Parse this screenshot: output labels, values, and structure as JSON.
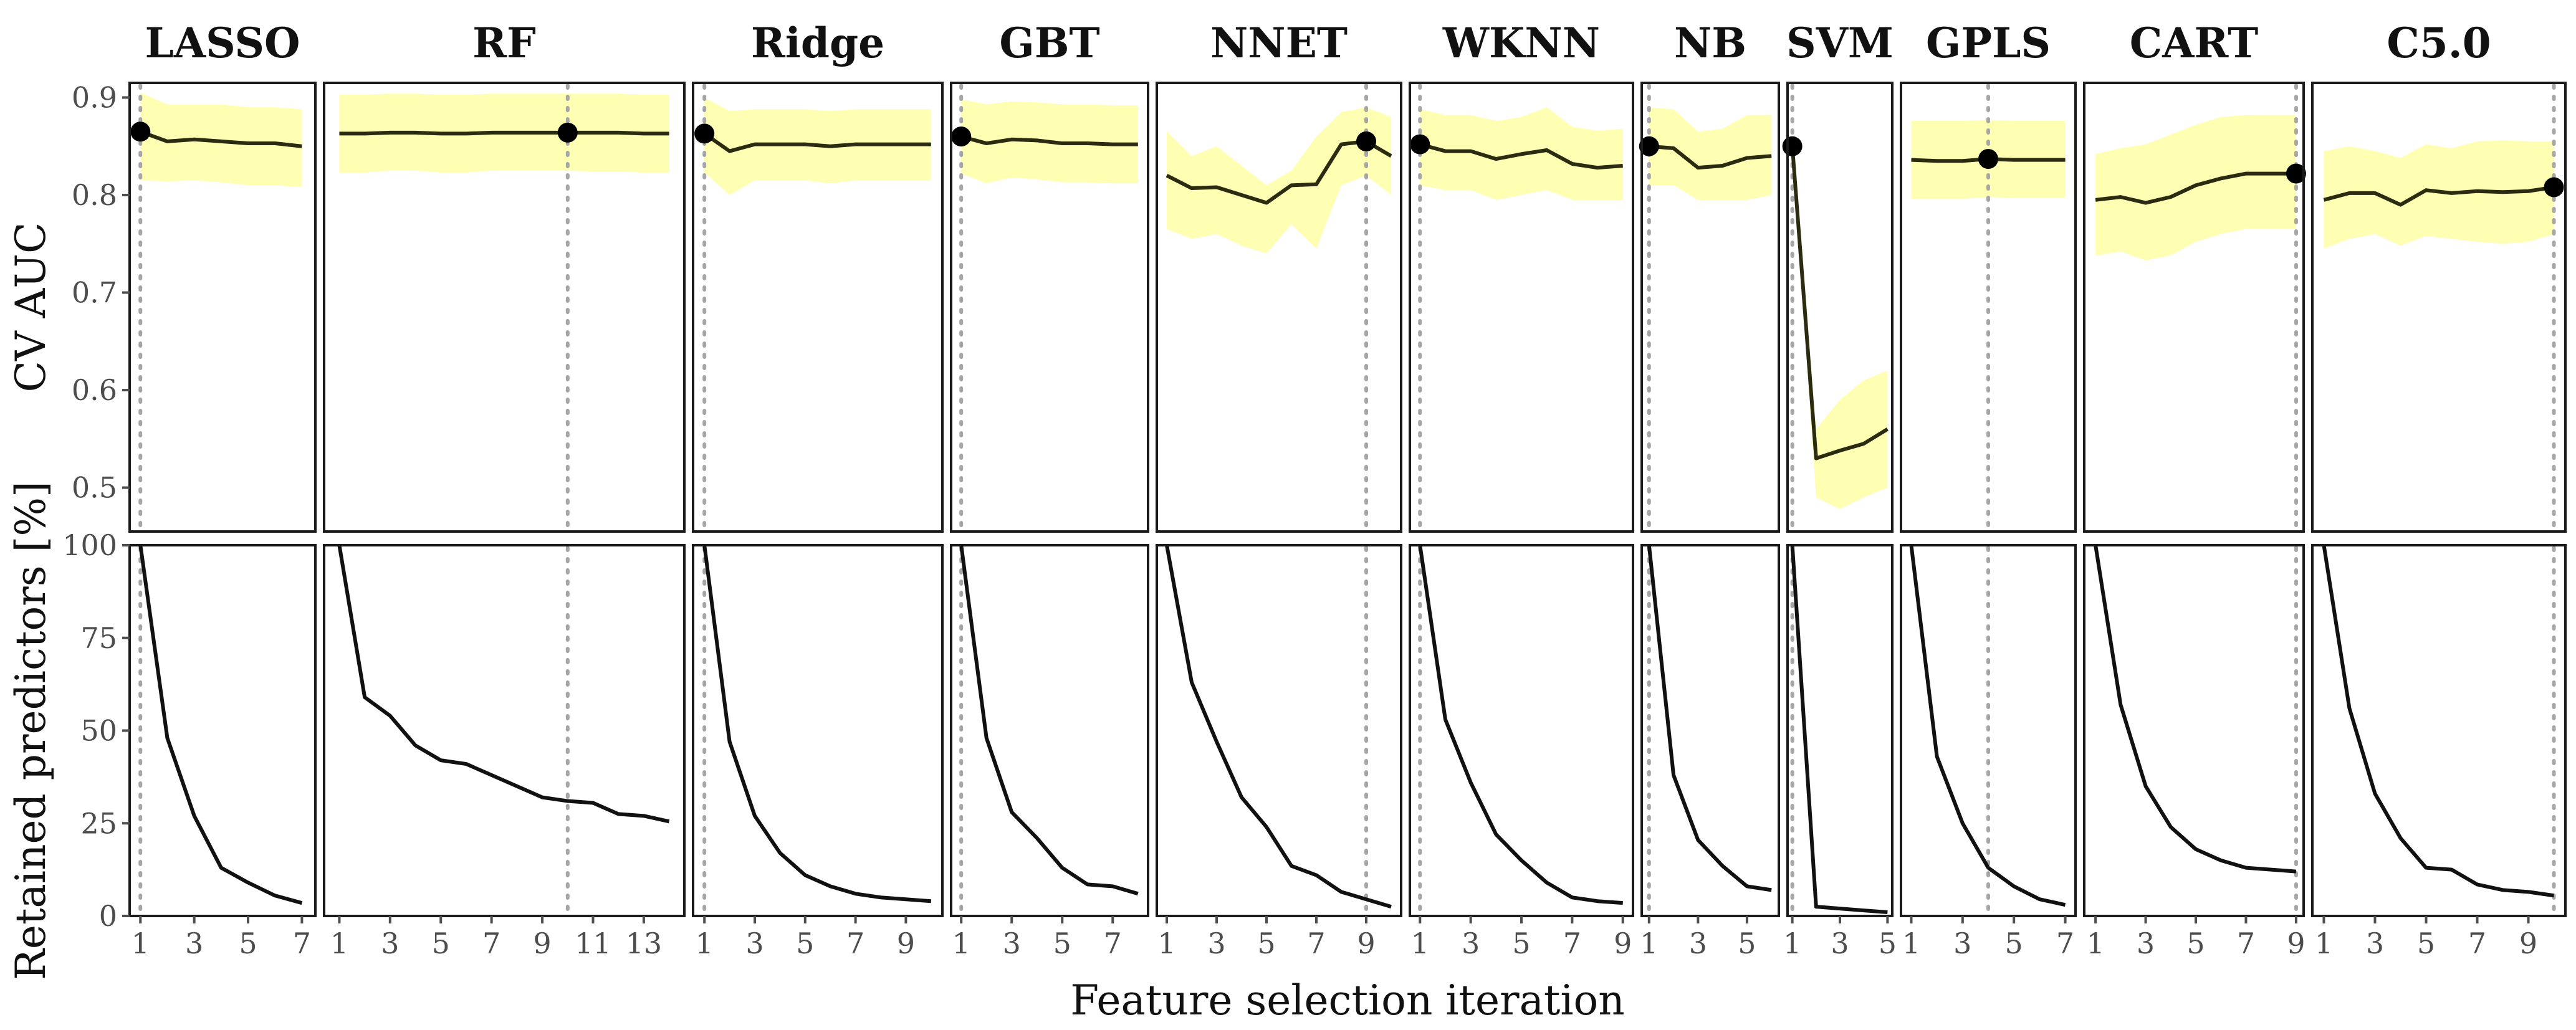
{
  "chart_data": {
    "type": "line",
    "xlabel": "Feature selection iteration",
    "rows": [
      {
        "key": "auc",
        "ylabel": "CV AUC",
        "ylim": [
          0.455,
          0.915
        ],
        "yticks": [
          0.5,
          0.6,
          0.7,
          0.8,
          0.9
        ],
        "ytick_labels": [
          "0.5",
          "0.6",
          "0.7",
          "0.8",
          "0.9"
        ]
      },
      {
        "key": "pred",
        "ylabel": "Retained predictors [%]",
        "ylim": [
          0,
          100
        ],
        "yticks": [
          0,
          25,
          50,
          75,
          100
        ],
        "ytick_labels": [
          "0",
          "25",
          "50",
          "75",
          "100"
        ]
      }
    ],
    "facets": [
      {
        "name": "LASSO",
        "xlim": [
          0.6,
          7.5
        ],
        "xticks": [
          1,
          3,
          5,
          7
        ],
        "optimal_iteration": 1,
        "iterations": [
          1,
          2,
          3,
          4,
          5,
          6,
          7
        ],
        "auc": [
          0.865,
          0.855,
          0.857,
          0.855,
          0.853,
          0.853,
          0.85
        ],
        "auc_lower": [
          0.815,
          0.814,
          0.815,
          0.813,
          0.81,
          0.81,
          0.808
        ],
        "auc_upper": [
          0.905,
          0.893,
          0.893,
          0.893,
          0.89,
          0.89,
          0.888
        ],
        "predictors": [
          100,
          48,
          27,
          13,
          9,
          5.5,
          3.5
        ]
      },
      {
        "name": "RF",
        "xlim": [
          0.4,
          14.6
        ],
        "xticks": [
          1,
          3,
          5,
          7,
          9,
          11,
          13
        ],
        "optimal_iteration": 10,
        "iterations": [
          1,
          2,
          3,
          4,
          5,
          6,
          7,
          8,
          9,
          10,
          11,
          12,
          13,
          14
        ],
        "auc": [
          0.863,
          0.863,
          0.864,
          0.864,
          0.863,
          0.863,
          0.864,
          0.864,
          0.864,
          0.864,
          0.864,
          0.864,
          0.863,
          0.863
        ],
        "auc_lower": [
          0.823,
          0.823,
          0.825,
          0.825,
          0.823,
          0.823,
          0.825,
          0.825,
          0.825,
          0.825,
          0.824,
          0.824,
          0.823,
          0.823
        ],
        "auc_upper": [
          0.903,
          0.903,
          0.904,
          0.904,
          0.903,
          0.903,
          0.904,
          0.904,
          0.904,
          0.904,
          0.904,
          0.904,
          0.903,
          0.903
        ],
        "predictors": [
          100,
          59,
          54,
          46,
          42,
          41,
          38,
          35,
          32,
          31,
          30.5,
          27.5,
          27,
          25.5
        ]
      },
      {
        "name": "Ridge",
        "xlim": [
          0.55,
          10.45
        ],
        "xticks": [
          1,
          3,
          5,
          7,
          9
        ],
        "optimal_iteration": 1,
        "iterations": [
          1,
          2,
          3,
          4,
          5,
          6,
          7,
          8,
          9,
          10
        ],
        "auc": [
          0.863,
          0.845,
          0.852,
          0.852,
          0.852,
          0.85,
          0.852,
          0.852,
          0.852,
          0.852
        ],
        "auc_lower": [
          0.823,
          0.8,
          0.815,
          0.815,
          0.815,
          0.812,
          0.815,
          0.815,
          0.815,
          0.815
        ],
        "auc_upper": [
          0.9,
          0.886,
          0.888,
          0.888,
          0.888,
          0.886,
          0.888,
          0.888,
          0.888,
          0.888
        ],
        "predictors": [
          100,
          47,
          27,
          17,
          11,
          8,
          6,
          5,
          4.5,
          4
        ]
      },
      {
        "name": "GBT",
        "xlim": [
          0.6,
          8.4
        ],
        "xticks": [
          1,
          3,
          5,
          7
        ],
        "optimal_iteration": 1,
        "iterations": [
          1,
          2,
          3,
          4,
          5,
          6,
          7,
          8
        ],
        "auc": [
          0.86,
          0.853,
          0.857,
          0.856,
          0.853,
          0.853,
          0.852,
          0.852
        ],
        "auc_lower": [
          0.822,
          0.812,
          0.818,
          0.816,
          0.813,
          0.813,
          0.812,
          0.812
        ],
        "auc_upper": [
          0.898,
          0.893,
          0.896,
          0.895,
          0.893,
          0.893,
          0.892,
          0.892
        ],
        "predictors": [
          100,
          48,
          28,
          21,
          13,
          8.5,
          8,
          6
        ]
      },
      {
        "name": "NNET",
        "xlim": [
          0.6,
          10.4
        ],
        "xticks": [
          1,
          3,
          5,
          7,
          9
        ],
        "optimal_iteration": 9,
        "iterations": [
          1,
          2,
          3,
          4,
          5,
          6,
          7,
          8,
          9,
          10
        ],
        "auc": [
          0.82,
          0.807,
          0.808,
          0.8,
          0.792,
          0.81,
          0.811,
          0.852,
          0.855,
          0.84
        ],
        "auc_lower": [
          0.765,
          0.755,
          0.76,
          0.748,
          0.74,
          0.77,
          0.745,
          0.81,
          0.82,
          0.8
        ],
        "auc_upper": [
          0.865,
          0.84,
          0.85,
          0.83,
          0.81,
          0.825,
          0.86,
          0.885,
          0.89,
          0.88
        ],
        "predictors": [
          100,
          63,
          47,
          32,
          24,
          13.5,
          11,
          6.5,
          4.5,
          2.5
        ]
      },
      {
        "name": "WKNN",
        "xlim": [
          0.6,
          9.4
        ],
        "xticks": [
          1,
          3,
          5,
          7,
          9
        ],
        "optimal_iteration": 1,
        "iterations": [
          1,
          2,
          3,
          4,
          5,
          6,
          7,
          8,
          9
        ],
        "auc": [
          0.852,
          0.845,
          0.845,
          0.837,
          0.842,
          0.846,
          0.832,
          0.828,
          0.83
        ],
        "auc_lower": [
          0.81,
          0.805,
          0.805,
          0.795,
          0.8,
          0.805,
          0.795,
          0.795,
          0.795
        ],
        "auc_upper": [
          0.888,
          0.882,
          0.882,
          0.876,
          0.88,
          0.89,
          0.87,
          0.866,
          0.868
        ],
        "predictors": [
          100,
          53,
          36,
          22,
          15,
          9,
          5,
          4,
          3.5
        ]
      },
      {
        "name": "NB",
        "xlim": [
          0.7,
          6.3
        ],
        "xticks": [
          1,
          3,
          5
        ],
        "optimal_iteration": 1,
        "iterations": [
          1,
          2,
          3,
          4,
          5,
          6
        ],
        "auc": [
          0.85,
          0.848,
          0.828,
          0.83,
          0.838,
          0.84
        ],
        "auc_lower": [
          0.81,
          0.81,
          0.795,
          0.795,
          0.795,
          0.8
        ],
        "auc_upper": [
          0.89,
          0.888,
          0.865,
          0.868,
          0.882,
          0.882
        ],
        "predictors": [
          100,
          38,
          20.5,
          13.5,
          8,
          7
        ]
      },
      {
        "name": "SVM",
        "xlim": [
          0.8,
          5.2
        ],
        "xticks": [
          1,
          3,
          5
        ],
        "optimal_iteration": 1,
        "iterations": [
          1,
          2,
          3,
          4,
          5
        ],
        "auc": [
          0.85,
          0.53,
          0.538,
          0.545,
          0.56
        ],
        "auc_lower": [
          0.85,
          0.49,
          0.478,
          0.49,
          0.5
        ],
        "auc_upper": [
          0.85,
          0.56,
          0.59,
          0.61,
          0.62
        ],
        "predictors": [
          100,
          2.5,
          2,
          1.5,
          1
        ]
      },
      {
        "name": "GPLS",
        "xlim": [
          0.6,
          7.4
        ],
        "xticks": [
          1,
          3,
          5,
          7
        ],
        "optimal_iteration": 4,
        "iterations": [
          1,
          2,
          3,
          4,
          5,
          6,
          7
        ],
        "auc": [
          0.836,
          0.835,
          0.835,
          0.837,
          0.836,
          0.836,
          0.836
        ],
        "auc_lower": [
          0.796,
          0.796,
          0.796,
          0.798,
          0.797,
          0.797,
          0.797
        ],
        "auc_upper": [
          0.876,
          0.876,
          0.876,
          0.877,
          0.876,
          0.876,
          0.876
        ],
        "predictors": [
          100,
          43,
          25,
          13,
          8,
          4.5,
          3
        ]
      },
      {
        "name": "CART",
        "xlim": [
          0.55,
          9.3
        ],
        "xticks": [
          1,
          3,
          5,
          7,
          9
        ],
        "optimal_iteration": 9,
        "iterations": [
          1,
          2,
          3,
          4,
          5,
          6,
          7,
          8,
          9
        ],
        "auc": [
          0.795,
          0.798,
          0.792,
          0.798,
          0.81,
          0.817,
          0.822,
          0.822,
          0.822
        ],
        "auc_lower": [
          0.738,
          0.742,
          0.733,
          0.738,
          0.752,
          0.76,
          0.765,
          0.765,
          0.765
        ],
        "auc_upper": [
          0.842,
          0.848,
          0.852,
          0.862,
          0.872,
          0.88,
          0.882,
          0.882,
          0.882
        ],
        "predictors": [
          100,
          57,
          35,
          24,
          18,
          15,
          13,
          12.5,
          12
        ]
      },
      {
        "name": "C5.0",
        "xlim": [
          0.55,
          10.45
        ],
        "xticks": [
          1,
          3,
          5,
          7,
          9
        ],
        "optimal_iteration": 10,
        "iterations": [
          1,
          2,
          3,
          4,
          5,
          6,
          7,
          8,
          9,
          10
        ],
        "auc": [
          0.795,
          0.802,
          0.802,
          0.79,
          0.805,
          0.802,
          0.804,
          0.803,
          0.804,
          0.808
        ],
        "auc_lower": [
          0.745,
          0.755,
          0.76,
          0.748,
          0.758,
          0.755,
          0.752,
          0.75,
          0.752,
          0.76
        ],
        "auc_upper": [
          0.845,
          0.85,
          0.845,
          0.838,
          0.852,
          0.848,
          0.855,
          0.856,
          0.855,
          0.855
        ],
        "predictors": [
          100,
          56,
          33,
          21,
          13,
          12.5,
          8.5,
          7,
          6.5,
          5.5
        ]
      }
    ],
    "colors": {
      "ribbon": "#ffffb3",
      "line": "#2b2b11",
      "point": "#000000",
      "vline": "#a6a6a6",
      "border": "#1a1a1a"
    },
    "legend": "none",
    "grid": false
  }
}
